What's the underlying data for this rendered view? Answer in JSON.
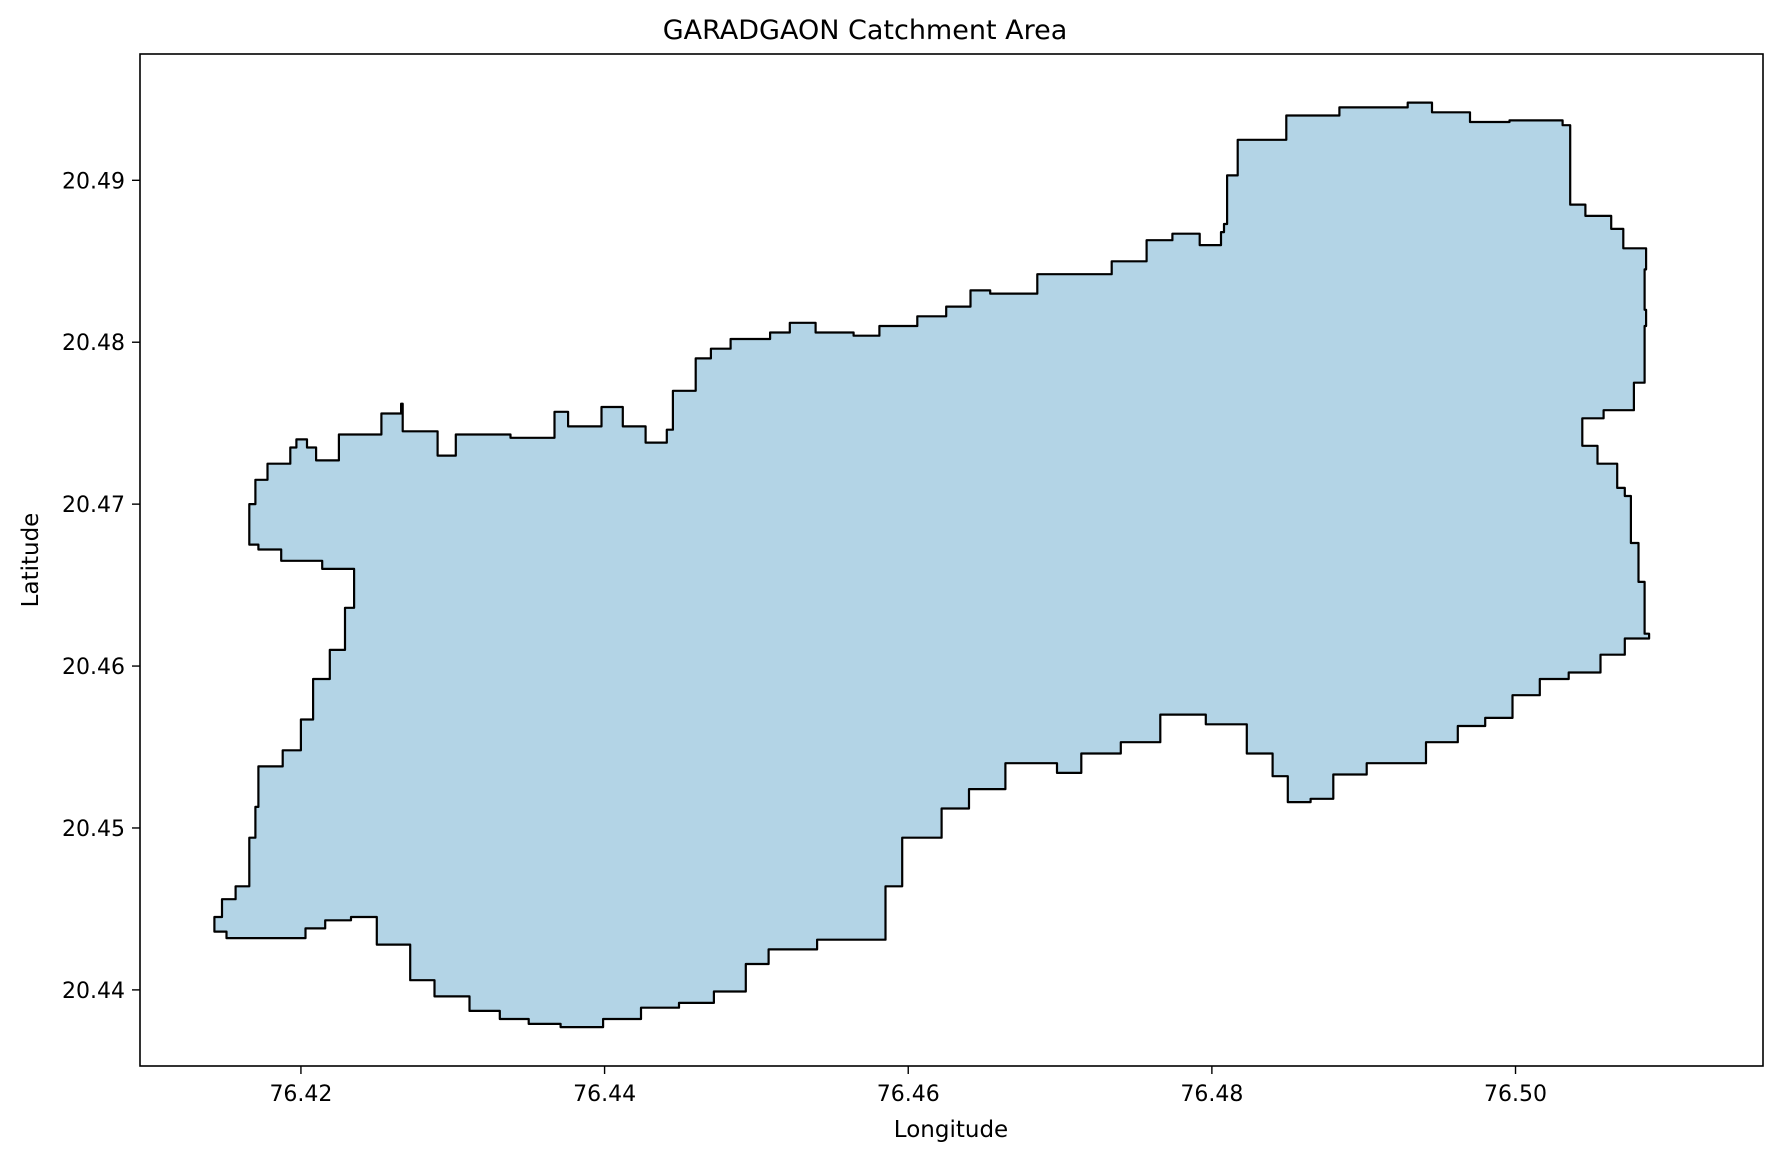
{
  "chart_data": {
    "type": "map",
    "title": "GARADGAON Catchment Area",
    "xlabel": "Longitude",
    "ylabel": "Latitude",
    "xlim": [
      76.4094,
      76.5163
    ],
    "ylim": [
      20.4353,
      20.4978
    ],
    "x_ticks": [
      "76.42",
      "76.44",
      "76.46",
      "76.48",
      "76.50"
    ],
    "y_ticks": [
      "20.44",
      "20.45",
      "20.46",
      "20.47",
      "20.48",
      "20.49"
    ],
    "grid": false,
    "fill_color": "#b3d4e6",
    "edge_color": "#000000",
    "boundary": [
      [
        76.4166,
        20.47
      ],
      [
        76.417,
        20.4715
      ],
      [
        76.4178,
        20.4725
      ],
      [
        76.4189,
        20.4725
      ],
      [
        76.4193,
        20.4735
      ],
      [
        76.4197,
        20.474
      ],
      [
        76.4204,
        20.4735
      ],
      [
        76.421,
        20.4727
      ],
      [
        76.422,
        20.4727
      ],
      [
        76.4225,
        20.4743
      ],
      [
        76.4242,
        20.4743
      ],
      [
        76.4253,
        20.4756
      ],
      [
        76.4266,
        20.4762
      ],
      [
        76.4267,
        20.4745
      ],
      [
        76.429,
        20.473
      ],
      [
        76.4302,
        20.4743
      ],
      [
        76.4338,
        20.4741
      ],
      [
        76.4367,
        20.4757
      ],
      [
        76.4376,
        20.4748
      ],
      [
        76.4398,
        20.476
      ],
      [
        76.4412,
        20.4748
      ],
      [
        76.4427,
        20.4738
      ],
      [
        76.4441,
        20.4746
      ],
      [
        76.4445,
        20.477
      ],
      [
        76.446,
        20.479
      ],
      [
        76.447,
        20.4796
      ],
      [
        76.4483,
        20.4802
      ],
      [
        76.4509,
        20.4806
      ],
      [
        76.4522,
        20.4812
      ],
      [
        76.4539,
        20.4806
      ],
      [
        76.4564,
        20.4804
      ],
      [
        76.4581,
        20.481
      ],
      [
        76.4606,
        20.4816
      ],
      [
        76.4625,
        20.4822
      ],
      [
        76.4641,
        20.4832
      ],
      [
        76.4654,
        20.483
      ],
      [
        76.4685,
        20.4842
      ],
      [
        76.4702,
        20.4842
      ],
      [
        76.4734,
        20.485
      ],
      [
        76.4757,
        20.4863
      ],
      [
        76.4774,
        20.4867
      ],
      [
        76.4792,
        20.486
      ],
      [
        76.4806,
        20.4868
      ],
      [
        76.4808,
        20.4873
      ],
      [
        76.481,
        20.4903
      ],
      [
        76.4817,
        20.4925
      ],
      [
        76.4849,
        20.494
      ],
      [
        76.4884,
        20.4945
      ],
      [
        76.4909,
        20.4945
      ],
      [
        76.4929,
        20.4948
      ],
      [
        76.4945,
        20.4942
      ],
      [
        76.497,
        20.4936
      ],
      [
        76.4996,
        20.4937
      ],
      [
        76.5031,
        20.4934
      ],
      [
        76.5036,
        20.4885
      ],
      [
        76.5046,
        20.4878
      ],
      [
        76.5063,
        20.487
      ],
      [
        76.5071,
        20.4858
      ],
      [
        76.5086,
        20.4845
      ],
      [
        76.5085,
        20.482
      ],
      [
        76.5086,
        20.481
      ],
      [
        76.5085,
        20.4775
      ],
      [
        76.5078,
        20.4758
      ],
      [
        76.5058,
        20.4753
      ],
      [
        76.5044,
        20.4736
      ],
      [
        76.5054,
        20.4725
      ],
      [
        76.5067,
        20.471
      ],
      [
        76.5072,
        20.4705
      ],
      [
        76.5076,
        20.4676
      ],
      [
        76.5081,
        20.4652
      ],
      [
        76.5085,
        20.462
      ],
      [
        76.5088,
        20.4617
      ],
      [
        76.5072,
        20.4607
      ],
      [
        76.5056,
        20.4596
      ],
      [
        76.5035,
        20.4592
      ],
      [
        76.5016,
        20.4582
      ],
      [
        76.4998,
        20.4568
      ],
      [
        76.498,
        20.4563
      ],
      [
        76.4962,
        20.4553
      ],
      [
        76.4941,
        20.454
      ],
      [
        76.4902,
        20.4533
      ],
      [
        76.488,
        20.4518
      ],
      [
        76.4865,
        20.4516
      ],
      [
        76.485,
        20.4532
      ],
      [
        76.484,
        20.4546
      ],
      [
        76.4823,
        20.4564
      ],
      [
        76.4796,
        20.457
      ],
      [
        76.4766,
        20.4553
      ],
      [
        76.474,
        20.4546
      ],
      [
        76.4714,
        20.4534
      ],
      [
        76.4698,
        20.454
      ],
      [
        76.4664,
        20.4524
      ],
      [
        76.464,
        20.4512
      ],
      [
        76.4622,
        20.4494
      ],
      [
        76.4596,
        20.4464
      ],
      [
        76.4585,
        20.4431
      ],
      [
        76.456,
        20.4431
      ],
      [
        76.454,
        20.4425
      ],
      [
        76.4508,
        20.4416
      ],
      [
        76.4493,
        20.4399
      ],
      [
        76.4472,
        20.4392
      ],
      [
        76.4449,
        20.4389
      ],
      [
        76.4424,
        20.4382
      ],
      [
        76.4399,
        20.4377
      ],
      [
        76.4371,
        20.4379
      ],
      [
        76.435,
        20.4382
      ],
      [
        76.4331,
        20.4387
      ],
      [
        76.4311,
        20.4396
      ],
      [
        76.4288,
        20.4406
      ],
      [
        76.4272,
        20.4428
      ],
      [
        76.425,
        20.4445
      ],
      [
        76.4233,
        20.4443
      ],
      [
        76.4216,
        20.4438
      ],
      [
        76.4203,
        20.4432
      ],
      [
        76.4185,
        20.4432
      ],
      [
        76.4151,
        20.4436
      ],
      [
        76.4143,
        20.4445
      ],
      [
        76.4148,
        20.4456
      ],
      [
        76.4157,
        20.4464
      ],
      [
        76.4166,
        20.4494
      ],
      [
        76.417,
        20.4513
      ],
      [
        76.4172,
        20.4538
      ],
      [
        76.4188,
        20.4548
      ],
      [
        76.42,
        20.4567
      ],
      [
        76.4208,
        20.4592
      ],
      [
        76.4219,
        20.461
      ],
      [
        76.4229,
        20.4636
      ],
      [
        76.4235,
        20.466
      ],
      [
        76.4214,
        20.4665
      ],
      [
        76.4187,
        20.4672
      ],
      [
        76.4172,
        20.4675
      ],
      [
        76.4166,
        20.4688
      ],
      [
        76.4166,
        20.47
      ]
    ]
  }
}
